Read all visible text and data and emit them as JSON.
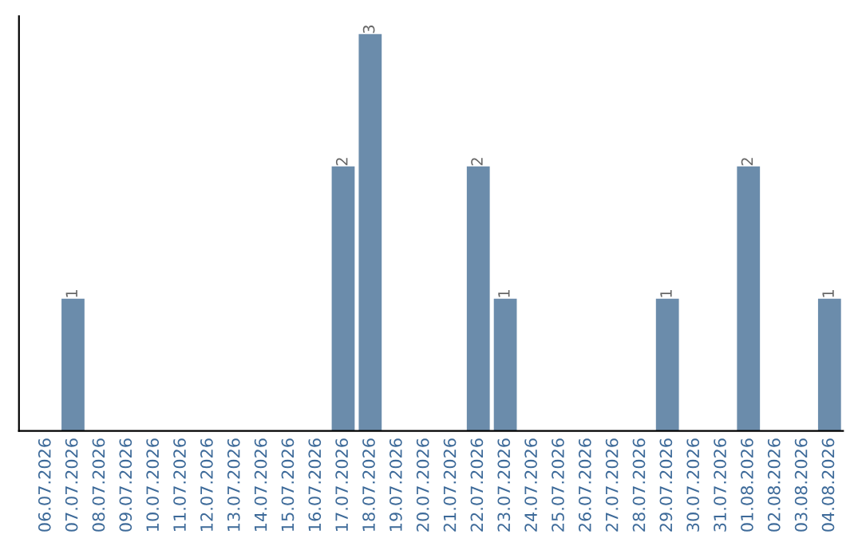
{
  "chart_data": {
    "type": "bar",
    "categories": [
      "06.07.2026",
      "07.07.2026",
      "08.07.2026",
      "09.07.2026",
      "10.07.2026",
      "11.07.2026",
      "12.07.2026",
      "13.07.2026",
      "14.07.2026",
      "15.07.2026",
      "16.07.2026",
      "17.07.2026",
      "18.07.2026",
      "19.07.2026",
      "20.07.2026",
      "21.07.2026",
      "22.07.2026",
      "23.07.2026",
      "24.07.2026",
      "25.07.2026",
      "26.07.2026",
      "27.07.2026",
      "28.07.2026",
      "29.07.2026",
      "30.07.2026",
      "31.07.2026",
      "01.08.2026",
      "02.08.2026",
      "03.08.2026",
      "04.08.2026"
    ],
    "values": [
      0,
      1,
      0,
      0,
      0,
      0,
      0,
      0,
      0,
      0,
      0,
      2,
      3,
      0,
      0,
      0,
      2,
      1,
      0,
      0,
      0,
      0,
      0,
      1,
      0,
      0,
      2,
      0,
      0,
      1
    ],
    "value_labels": [
      null,
      "1",
      null,
      null,
      null,
      null,
      null,
      null,
      null,
      null,
      null,
      "2",
      "3",
      null,
      null,
      null,
      "2",
      "1",
      null,
      null,
      null,
      null,
      null,
      "1",
      null,
      null,
      "2",
      null,
      null,
      "1"
    ],
    "color": "#6b8cab",
    "grid": false,
    "legend": false
  }
}
